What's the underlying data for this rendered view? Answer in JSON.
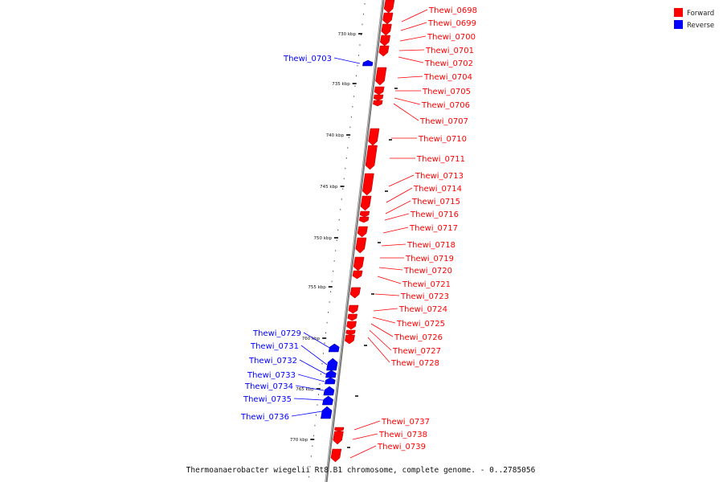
{
  "caption": "Thermoanaerobacter wiegelii Rt8.B1 chromosome, complete genome. - 0..2785056",
  "legend": [
    {
      "label": "Forward",
      "color": "#ff0000"
    },
    {
      "label": "Reverse",
      "color": "#0000ff"
    }
  ],
  "colors": {
    "forward": "#ff0000",
    "reverse": "#0000ff",
    "backbone": "#888888"
  },
  "ticks": [
    "730 kbp",
    "735 kbp",
    "740 kbp",
    "745 kbp",
    "750 kbp",
    "755 kbp",
    "760 kbp",
    "765 kbp",
    "770 kbp"
  ],
  "genes_forward": [
    "Thewi_0698",
    "Thewi_0699",
    "Thewi_0700",
    "Thewi_0701",
    "Thewi_0702",
    "Thewi_0704",
    "Thewi_0705",
    "Thewi_0706",
    "Thewi_0707",
    "Thewi_0710",
    "Thewi_0711",
    "Thewi_0713",
    "Thewi_0714",
    "Thewi_0715",
    "Thewi_0716",
    "Thewi_0717",
    "Thewi_0718",
    "Thewi_0719",
    "Thewi_0720",
    "Thewi_0721",
    "Thewi_0723",
    "Thewi_0724",
    "Thewi_0725",
    "Thewi_0726",
    "Thewi_0727",
    "Thewi_0728",
    "Thewi_0737",
    "Thewi_0738",
    "Thewi_0739"
  ],
  "genes_reverse": [
    "Thewi_0703",
    "Thewi_0729",
    "Thewi_0731",
    "Thewi_0732",
    "Thewi_0733",
    "Thewi_0734",
    "Thewi_0735",
    "Thewi_0736"
  ]
}
